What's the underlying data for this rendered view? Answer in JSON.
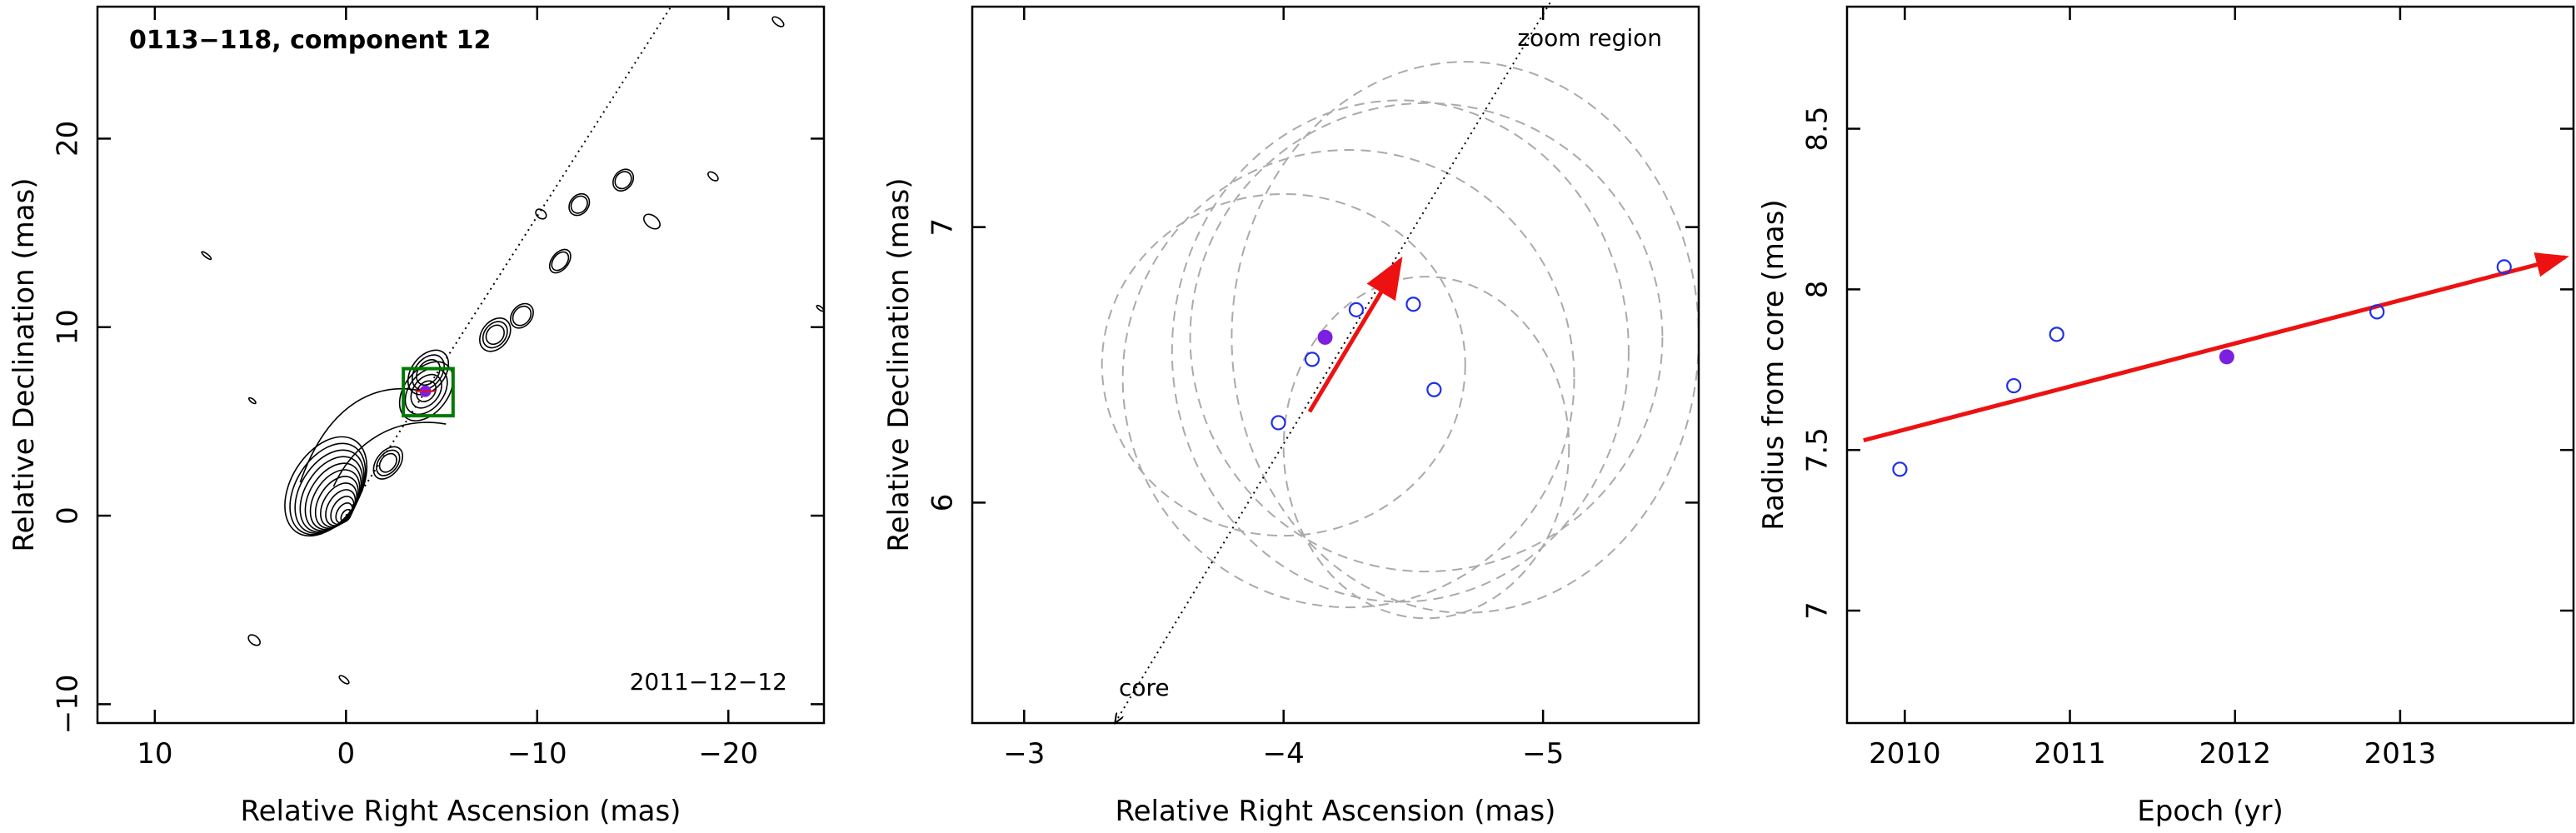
{
  "chart_data": [
    {
      "type": "contour",
      "title": "0113−118, component 12",
      "date_label": "2011−12−12",
      "xlabel": "Relative Right Ascension (mas)",
      "ylabel": "Relative Declination (mas)",
      "xlim": [
        13,
        -25
      ],
      "ylim": [
        -11,
        27
      ],
      "xticks": [
        10,
        0,
        -10,
        -20
      ],
      "xtick_labels": [
        "10",
        "0",
        "−10",
        "−20"
      ],
      "yticks": [
        -10,
        0,
        10,
        20
      ],
      "ytick_labels": [
        "−10",
        "0",
        "10",
        "20"
      ],
      "jet_direction_line": {
        "from": [
          0,
          0
        ],
        "to": [
          -17,
          27
        ]
      },
      "core_position": [
        0,
        0
      ],
      "component_position": [
        -4.15,
        6.6
      ],
      "zoom_box": {
        "ra": [
          -3.0,
          -5.6
        ],
        "dec": [
          5.3,
          7.8
        ]
      },
      "colors": {
        "contours": "#000000",
        "zoom_box": "#007a00",
        "component": "#7b1fe0"
      }
    },
    {
      "type": "scatter",
      "annotations": [
        "zoom region",
        "core"
      ],
      "xlabel": "Relative Right Ascension (mas)",
      "ylabel": "Relative Declination (mas)",
      "xlim": [
        -2.8,
        -5.6
      ],
      "ylim": [
        5.2,
        7.8
      ],
      "xticks": [
        -3,
        -4,
        -5
      ],
      "xtick_labels": [
        "−3",
        "−4",
        "−5"
      ],
      "yticks": [
        6,
        7
      ],
      "ytick_labels": [
        "6",
        "7"
      ],
      "points_open": [
        [
          -3.98,
          6.29
        ],
        [
          -4.11,
          6.52
        ],
        [
          -4.28,
          6.7
        ],
        [
          -4.5,
          6.72
        ],
        [
          -4.58,
          6.41
        ]
      ],
      "point_filled": [
        -4.16,
        6.6
      ],
      "ellipses": [
        {
          "center": [
            -4.25,
            6.45
          ],
          "rx": 0.87,
          "ry": 0.83
        },
        {
          "center": [
            -4.45,
            6.55
          ],
          "rx": 0.88,
          "ry": 0.91
        },
        {
          "center": [
            -4.55,
            6.6
          ],
          "rx": 0.91,
          "ry": 0.85
        },
        {
          "center": [
            -4.7,
            6.6
          ],
          "rx": 0.9,
          "ry": 1.0
        },
        {
          "center": [
            -4.0,
            6.5
          ],
          "rx": 0.7,
          "ry": 0.62
        },
        {
          "center": [
            -4.55,
            6.2
          ],
          "rx": 0.55,
          "ry": 0.62
        }
      ],
      "direction_line": {
        "from": [
          -3.35,
          5.2
        ],
        "to": [
          -5.05,
          7.85
        ]
      },
      "velocity_arrow": {
        "from": [
          -4.1,
          6.33
        ],
        "to": [
          -4.45,
          6.88
        ]
      },
      "colors": {
        "open_points": "#1f2fe8",
        "filled_point": "#7b1fe0",
        "ellipses": "#aaaaaa",
        "arrow": "#ee1111"
      }
    },
    {
      "type": "scatter",
      "xlabel": "Epoch (yr)",
      "ylabel": "Radius from core (mas)",
      "xlim": [
        2009.65,
        2014.05
      ],
      "ylim": [
        6.65,
        8.88
      ],
      "xticks": [
        2010,
        2011,
        2012,
        2013
      ],
      "xtick_labels": [
        "2010",
        "2011",
        "2012",
        "2013"
      ],
      "yticks": [
        7,
        7.5,
        8,
        8.5
      ],
      "ytick_labels": [
        "7",
        "7.5",
        "8",
        "8.5"
      ],
      "points_open": [
        [
          2009.97,
          7.44
        ],
        [
          2010.66,
          7.7
        ],
        [
          2010.92,
          7.86
        ],
        [
          2012.86,
          7.93
        ],
        [
          2013.63,
          8.07
        ]
      ],
      "point_filled": [
        2011.95,
        7.79
      ],
      "fit_line": {
        "from": [
          2009.75,
          7.53
        ],
        "to": [
          2014.0,
          8.1
        ]
      },
      "colors": {
        "open_points": "#1f2fe8",
        "filled_point": "#7b1fe0",
        "fit_line": "#ee1111"
      }
    }
  ]
}
